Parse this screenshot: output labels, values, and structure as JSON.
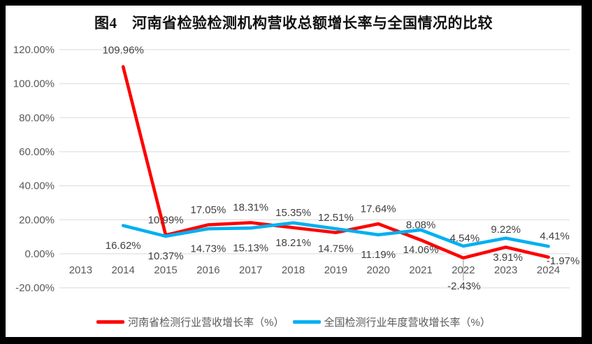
{
  "title": "图4　河南省检验检测机构营收总额增长率与全国情况的比较",
  "chart_data": {
    "type": "line",
    "title": "图4　河南省检验检测机构营收总额增长率与全国情况的比较",
    "categories": [
      "2013",
      "2014",
      "2015",
      "2016",
      "2017",
      "2018",
      "2019",
      "2020",
      "2021",
      "2022",
      "2023",
      "2024"
    ],
    "series": [
      {
        "name": "河南省检测行业营收增长率（%）",
        "color": "#FF0000",
        "values": [
          null,
          109.96,
          10.99,
          17.05,
          18.31,
          15.35,
          12.51,
          17.64,
          8.08,
          -2.43,
          3.91,
          -1.97
        ],
        "labels": [
          "",
          "109.96%",
          "10.99%",
          "17.05%",
          "18.31%",
          "15.35%",
          "12.51%",
          "17.64%",
          "8.08%",
          "-2.43%",
          "3.91%",
          "-1.97%"
        ]
      },
      {
        "name": "全国检测行业年度营收增长率（%）",
        "color": "#00B0F0",
        "values": [
          null,
          16.62,
          10.37,
          14.73,
          15.13,
          18.21,
          14.75,
          11.19,
          14.06,
          4.54,
          9.22,
          4.41
        ],
        "labels": [
          "",
          "16.62%",
          "10.37%",
          "14.73%",
          "15.13%",
          "18.21%",
          "14.75%",
          "11.19%",
          "14.06%",
          "4.54%",
          "9.22%",
          "4.41%"
        ]
      }
    ],
    "ylim": [
      -20,
      120
    ],
    "ytick_step": 20,
    "ytick_labels": [
      "120.00%",
      "100.00%",
      "80.00%",
      "60.00%",
      "40.00%",
      "20.00%",
      "0.00%",
      "-20.00%"
    ],
    "grid": true,
    "data_labels": true,
    "legend_position": "bottom"
  },
  "colors": {
    "background": "#000000",
    "panel": "#ffffff",
    "gridline": "#D9D9D9",
    "axis_text": "#595959",
    "data_label_text": "#404040",
    "legend_text": "#595959",
    "leader_line": "#A6A6A6",
    "series_henan": "#FF0000",
    "series_national": "#00B0F0"
  }
}
